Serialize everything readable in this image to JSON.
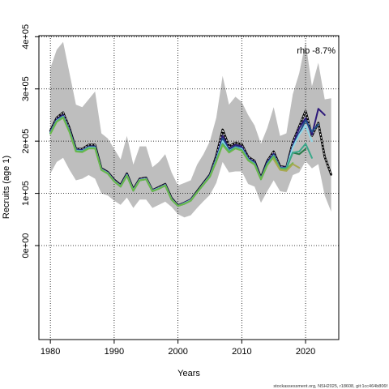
{
  "chart_data": {
    "type": "line",
    "title": "",
    "xlabel": "Years",
    "ylabel": "Recruits (age 1)",
    "xlim": [
      1978.2,
      2025.2
    ],
    "ylim": [
      -180000.0,
      402000.0
    ],
    "x_ticks": [
      1980,
      1990,
      2000,
      2010,
      2020
    ],
    "y_ticks": [
      0,
      100000,
      200000,
      300000,
      400000
    ],
    "x_tick_labels": [
      "1980",
      "1990",
      "2000",
      "2010",
      "2020"
    ],
    "y_tick_labels": [
      "0e+00",
      "1e+05",
      "2e+05",
      "3e+05",
      "4e+05"
    ],
    "grid": true,
    "grid_style": "dotted",
    "annotation": "rho -8.7%",
    "footer": "stockassessment.org, NSH2025, r18608, git:1cc464b806f",
    "confidence_band": {
      "color": "#bebebe",
      "years": [
        1980,
        1981,
        1982,
        1983,
        1984,
        1985,
        1986,
        1987,
        1988,
        1989,
        1990,
        1991,
        1992,
        1993,
        1994,
        1995,
        1996,
        1997,
        1998,
        1999,
        2000,
        2001,
        2002,
        2003,
        2004,
        2005,
        2006,
        2007,
        2008,
        2009,
        2010,
        2011,
        2012,
        2013,
        2014,
        2015,
        2016,
        2017,
        2018,
        2019,
        2020,
        2021,
        2022,
        2023,
        2024
      ],
      "upper": [
        340000,
        375000,
        390000,
        330000,
        270000,
        265000,
        280000,
        295000,
        215000,
        205000,
        185000,
        165000,
        210000,
        155000,
        190000,
        190000,
        150000,
        160000,
        175000,
        140000,
        115000,
        120000,
        125000,
        155000,
        175000,
        200000,
        245000,
        325000,
        270000,
        285000,
        275000,
        250000,
        230000,
        195000,
        225000,
        265000,
        210000,
        215000,
        290000,
        330000,
        390000,
        305000,
        350000,
        280000,
        282000
      ],
      "lower": [
        138000,
        160000,
        168000,
        145000,
        125000,
        128000,
        135000,
        128000,
        100000,
        96000,
        86000,
        78000,
        92000,
        72000,
        88000,
        88000,
        72000,
        78000,
        84000,
        74000,
        60000,
        54000,
        58000,
        72000,
        85000,
        97000,
        120000,
        160000,
        140000,
        142000,
        142000,
        118000,
        113000,
        82000,
        104000,
        125000,
        104000,
        102000,
        135000,
        140000,
        162000,
        148000,
        156000,
        96000,
        65000
      ]
    },
    "series": [
      {
        "color": "#000000",
        "x": [
          1980,
          1981,
          1982,
          1983,
          1984,
          1985,
          1986,
          1987,
          1988,
          1989,
          1990,
          1991,
          1992,
          1993,
          1994,
          1995,
          1996,
          1997,
          1998,
          1999,
          2000,
          2001,
          2002,
          2003,
          2004,
          2005,
          2006,
          2007,
          2008,
          2009,
          2010,
          2011,
          2012,
          2013,
          2014,
          2015,
          2016,
          2017,
          2018,
          2019,
          2020,
          2021,
          2022,
          2023,
          2024
        ],
        "values": [
          220000,
          245000,
          255000,
          225000,
          185000,
          185000,
          193000,
          193000,
          148000,
          141000,
          126000,
          116000,
          138000,
          108000,
          128000,
          130000,
          106000,
          112000,
          118000,
          91000,
          77000,
          82000,
          88000,
          104000,
          120000,
          136000,
          172000,
          222000,
          190000,
          197000,
          194000,
          170000,
          162000,
          130000,
          162000,
          180000,
          152000,
          150000,
          198000,
          228000,
          258000,
          210000,
          235000,
          170000,
          136000
        ]
      },
      {
        "color": "#2e1a7a",
        "x": [
          1980,
          1981,
          1982,
          1983,
          1984,
          1985,
          1986,
          1987,
          1988,
          1989,
          1990,
          1991,
          1992,
          1993,
          1994,
          1995,
          1996,
          1997,
          1998,
          1999,
          2000,
          2001,
          2002,
          2003,
          2004,
          2005,
          2006,
          2007,
          2008,
          2009,
          2010,
          2011,
          2012,
          2013,
          2014,
          2015,
          2016,
          2017,
          2018,
          2019,
          2020,
          2021,
          2022,
          2023
        ],
        "values": [
          218000,
          242000,
          250000,
          222000,
          184000,
          183000,
          190000,
          190000,
          147000,
          140000,
          125000,
          115000,
          137000,
          107000,
          127000,
          129000,
          106000,
          111000,
          117000,
          90000,
          77000,
          82000,
          88000,
          103000,
          119000,
          135000,
          168000,
          210000,
          185000,
          193000,
          190000,
          168000,
          160000,
          129000,
          160000,
          176000,
          150000,
          150000,
          192000,
          225000,
          244000,
          212000,
          262000,
          250000
        ]
      },
      {
        "color": "#1e4f8a",
        "x": [
          1980,
          1981,
          1982,
          1983,
          1984,
          1985,
          1986,
          1987,
          1988,
          1989,
          1990,
          1991,
          1992,
          1993,
          1994,
          1995,
          1996,
          1997,
          1998,
          1999,
          2000,
          2001,
          2002,
          2003,
          2004,
          2005,
          2006,
          2007,
          2008,
          2009,
          2010,
          2011,
          2012,
          2013,
          2014,
          2015,
          2016,
          2017,
          2018,
          2019,
          2020,
          2021,
          2022
        ],
        "values": [
          217000,
          240000,
          248000,
          220000,
          183000,
          182000,
          189000,
          189000,
          146000,
          139000,
          124000,
          114000,
          136000,
          106000,
          126000,
          128000,
          105000,
          110000,
          116000,
          89000,
          76000,
          81000,
          87000,
          103000,
          118000,
          134000,
          166000,
          205000,
          183000,
          190000,
          187000,
          166000,
          158000,
          128000,
          158000,
          174000,
          149000,
          149000,
          190000,
          215000,
          240000,
          218000,
          232000
        ]
      },
      {
        "color": "#8fd8e8",
        "x": [
          1980,
          1981,
          1982,
          1983,
          1984,
          1985,
          1986,
          1987,
          1988,
          1989,
          1990,
          1991,
          1992,
          1993,
          1994,
          1995,
          1996,
          1997,
          1998,
          1999,
          2000,
          2001,
          2002,
          2003,
          2004,
          2005,
          2006,
          2007,
          2008,
          2009,
          2010,
          2011,
          2012,
          2013,
          2014,
          2015,
          2016,
          2017,
          2018,
          2019,
          2020,
          2021
        ],
        "values": [
          216000,
          239000,
          247000,
          219000,
          182000,
          181000,
          188000,
          188000,
          146000,
          139000,
          124000,
          114000,
          135000,
          106000,
          126000,
          128000,
          105000,
          110000,
          116000,
          89000,
          76000,
          81000,
          87000,
          102000,
          118000,
          133000,
          164000,
          200000,
          181000,
          188000,
          185000,
          165000,
          157000,
          128000,
          156000,
          172000,
          148000,
          148000,
          188000,
          212000,
          230000,
          200000
        ]
      },
      {
        "color": "#2a7a4a",
        "x": [
          1980,
          1981,
          1982,
          1983,
          1984,
          1985,
          1986,
          1987,
          1988,
          1989,
          1990,
          1991,
          1992,
          1993,
          1994,
          1995,
          1996,
          1997,
          1998,
          1999,
          2000,
          2001,
          2002,
          2003,
          2004,
          2005,
          2006,
          2007,
          2008,
          2009,
          2010,
          2011,
          2012,
          2013,
          2014,
          2015,
          2016,
          2017,
          2018,
          2019,
          2020
        ],
        "values": [
          215000,
          238000,
          246000,
          218000,
          181000,
          180000,
          187000,
          187000,
          145000,
          138000,
          123000,
          113000,
          134000,
          105000,
          125000,
          127000,
          104000,
          109000,
          115000,
          88000,
          76000,
          80000,
          86000,
          102000,
          117000,
          132000,
          162000,
          195000,
          180000,
          187000,
          183000,
          164000,
          156000,
          127000,
          155000,
          171000,
          147000,
          148000,
          178000,
          175000,
          185000
        ]
      },
      {
        "color": "#3aa88a",
        "x": [
          1980,
          1981,
          1982,
          1983,
          1984,
          1985,
          1986,
          1987,
          1988,
          1989,
          1990,
          1991,
          1992,
          1993,
          1994,
          1995,
          1996,
          1997,
          1998,
          1999,
          2000,
          2001,
          2002,
          2003,
          2004,
          2005,
          2006,
          2007,
          2008,
          2009,
          2010,
          2011,
          2012,
          2013,
          2014,
          2015,
          2016,
          2017,
          2018,
          2019,
          2020,
          2021
        ],
        "values": [
          215000,
          238000,
          246000,
          218000,
          181000,
          180000,
          187000,
          187000,
          145000,
          138000,
          123000,
          113000,
          134000,
          105000,
          125000,
          127000,
          104000,
          109000,
          115000,
          88000,
          76000,
          80000,
          86000,
          102000,
          117000,
          132000,
          162000,
          195000,
          180000,
          187000,
          183000,
          164000,
          156000,
          127000,
          155000,
          171000,
          147000,
          148000,
          178000,
          180000,
          195000,
          168000
        ]
      },
      {
        "color": "#6cb84a",
        "x": [
          1980,
          1981,
          1982,
          1983,
          1984,
          1985,
          1986,
          1987,
          1988,
          1989,
          1990,
          1991,
          1992,
          1993,
          1994,
          1995,
          1996,
          1997,
          1998,
          1999,
          2000,
          2001,
          2002,
          2003,
          2004,
          2005,
          2006,
          2007,
          2008,
          2009,
          2010,
          2011,
          2012,
          2013,
          2014,
          2015,
          2016,
          2017,
          2018
        ],
        "values": [
          214000,
          237000,
          245000,
          217000,
          180000,
          179000,
          186000,
          186000,
          145000,
          138000,
          123000,
          113000,
          134000,
          105000,
          125000,
          127000,
          104000,
          109000,
          115000,
          88000,
          76000,
          80000,
          86000,
          102000,
          117000,
          132000,
          161000,
          193000,
          178000,
          186000,
          182000,
          163000,
          155000,
          127000,
          154000,
          170000,
          146000,
          146000,
          158000
        ]
      },
      {
        "color": "#a8a850",
        "x": [
          2015,
          2016,
          2017,
          2018,
          2019
        ],
        "values": [
          165000,
          145000,
          143000,
          156000,
          149000
        ]
      }
    ]
  }
}
